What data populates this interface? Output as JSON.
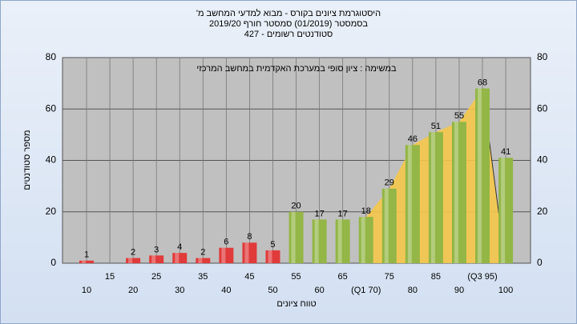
{
  "chart_data": {
    "type": "bar",
    "title": "היסטוגרמת ציונים בקורס - מבוא למדעי המחשב מ'",
    "subtitle": "בסמסטר (01/2019) סמסטר חורף 2019/20",
    "subtitle2": "סטודנטים רשומים - 427",
    "annotation": "במשימה : ציון סופי במערכת האקדמית במחשב המרכזי",
    "y_label": "מספר סטודנטים",
    "x_label": "טווח ציונים",
    "categories": [
      "10",
      "15",
      "20",
      "25",
      "30",
      "35",
      "40",
      "45",
      "50",
      "55",
      "60",
      "65",
      "(Q1 70)",
      "75",
      "80",
      "85",
      "90",
      "(Q3 95)",
      "100"
    ],
    "values": [
      1,
      null,
      2,
      3,
      4,
      2,
      6,
      8,
      5,
      20,
      17,
      17,
      18,
      29,
      46,
      51,
      55,
      68,
      41
    ],
    "colors": [
      "#e03a3a",
      "#e03a3a",
      "#e03a3a",
      "#e03a3a",
      "#e03a3a",
      "#e03a3a",
      "#e03a3a",
      "#e03a3a",
      "#e03a3a",
      "#93b646",
      "#93b646",
      "#93b646",
      "#93b646",
      "#93b646",
      "#93b646",
      "#93b646",
      "#93b646",
      "#93b646",
      "#93b646"
    ],
    "ylim": [
      0,
      80
    ],
    "yticks": [
      0,
      20,
      40,
      60,
      80
    ],
    "grid": true
  }
}
